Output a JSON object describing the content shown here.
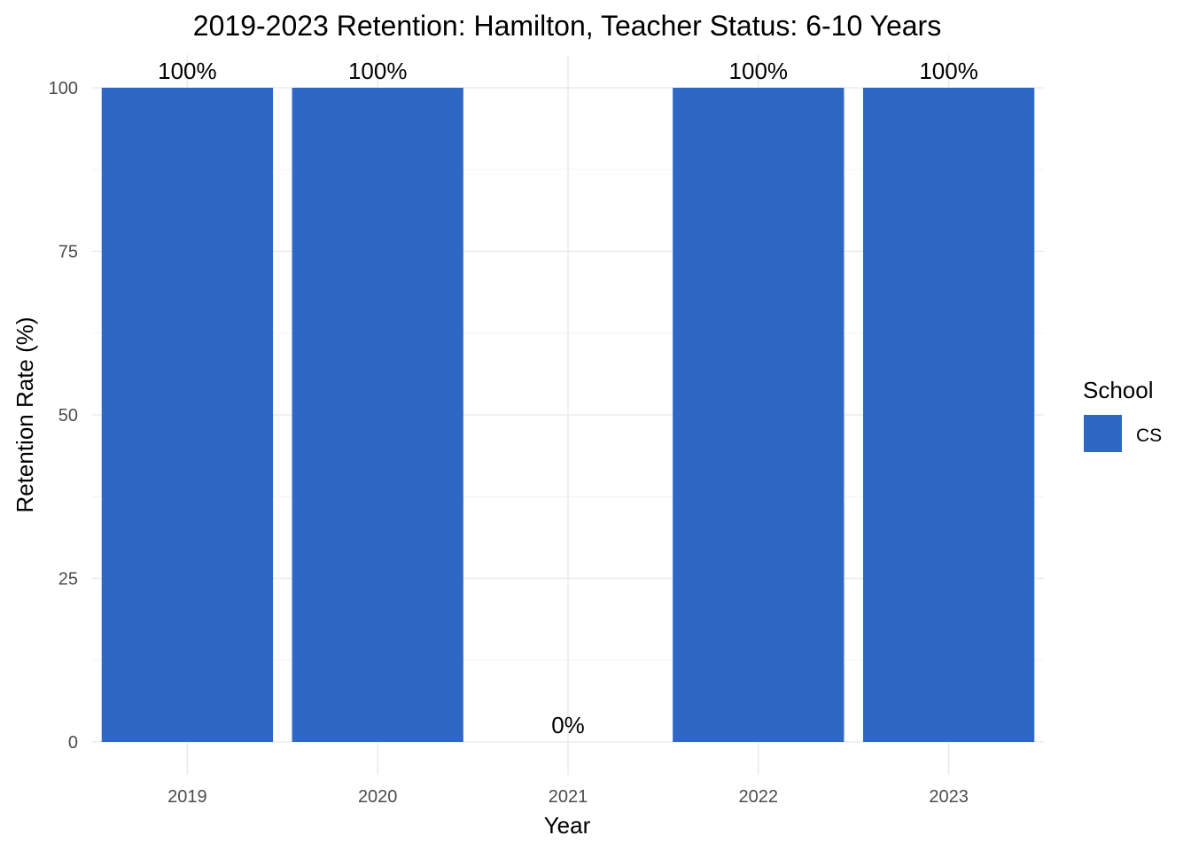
{
  "chart_data": {
    "type": "bar",
    "title": "2019-2023 Retention: Hamilton, Teacher Status: 6-10 Years",
    "xlabel": "Year",
    "ylabel": "Retention Rate (%)",
    "categories": [
      "2019",
      "2020",
      "2021",
      "2022",
      "2023"
    ],
    "series": [
      {
        "name": "CS",
        "values": [
          100,
          100,
          0,
          100,
          100
        ],
        "color": "#2e68c4"
      }
    ],
    "data_labels": [
      "100%",
      "100%",
      "0%",
      "100%",
      "100%"
    ],
    "yticks": [
      0,
      25,
      50,
      75,
      100
    ],
    "ytick_labels": [
      "0",
      "25",
      "50",
      "75",
      "100"
    ],
    "ylim": [
      0,
      100
    ],
    "grid": true,
    "legend": {
      "title": "School",
      "position": "right"
    }
  }
}
